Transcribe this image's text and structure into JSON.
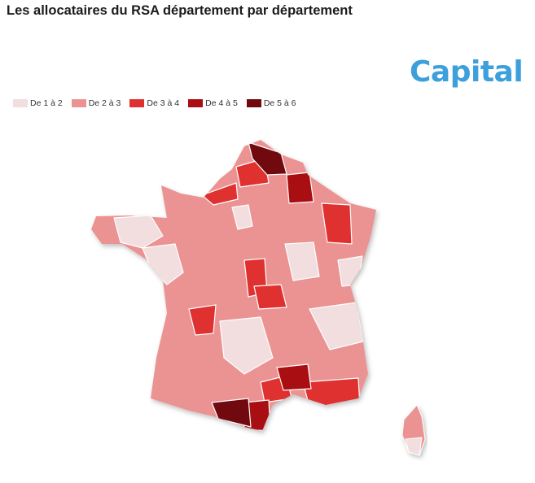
{
  "header": {
    "title": "Les allocataires du RSA département par département"
  },
  "brand": {
    "logo_text": "Capital",
    "color": "#3da0dc"
  },
  "legend": [
    {
      "label": "De 1 à 2",
      "color": "#f2dede"
    },
    {
      "label": "De 2 à 3",
      "color": "#eb9393"
    },
    {
      "label": "De 3 à 4",
      "color": "#e03131"
    },
    {
      "label": "De 4 à 5",
      "color": "#a80e12"
    },
    {
      "label": "De 5 à 6",
      "color": "#700a0e"
    }
  ],
  "map": {
    "region": "France métropolitaine",
    "classes": [
      "De 1 à 2",
      "De 2 à 3",
      "De 3 à 4",
      "De 4 à 5",
      "De 5 à 6"
    ]
  }
}
